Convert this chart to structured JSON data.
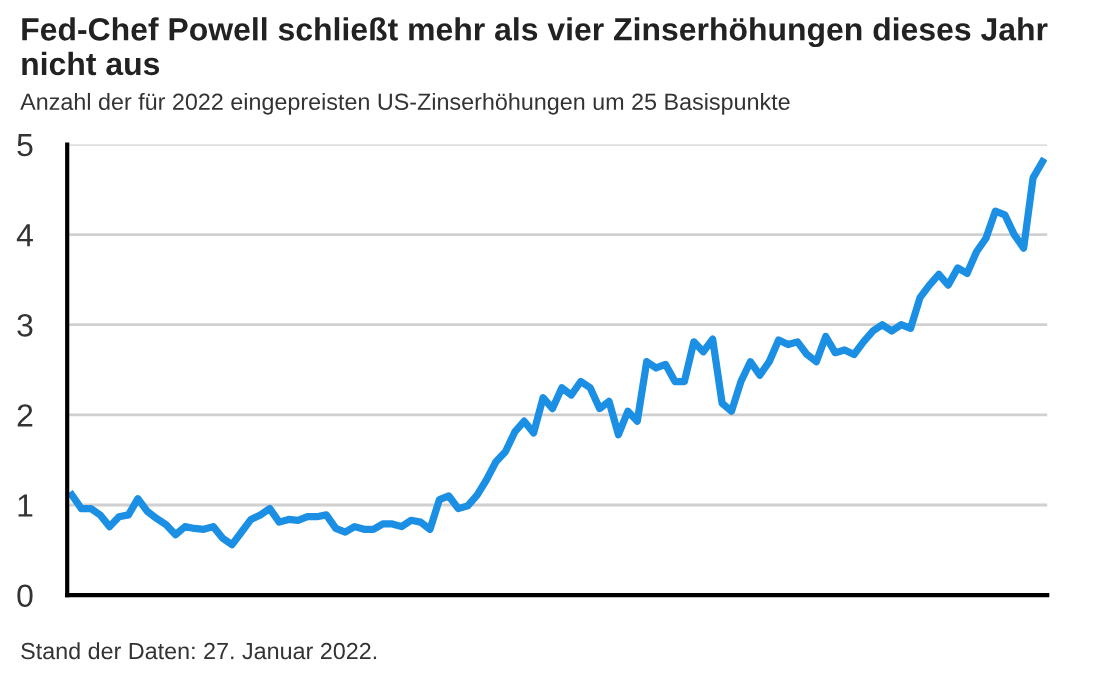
{
  "chart_data": {
    "type": "line",
    "title": "Fed-Chef Powell schließt mehr als vier Zinserhöhungen dieses Jahr nicht aus",
    "subtitle": "Anzahl der für 2022 eingepreisten US-Zinserhöhungen um 25 Basispunkte",
    "annotations": [
      "Stand der Daten: 27. Januar 2022."
    ],
    "categories": [
      null,
      null,
      null,
      null,
      null,
      null,
      null,
      null,
      null,
      null,
      null,
      null,
      null,
      null,
      null,
      null,
      null,
      null,
      null,
      null,
      null,
      null,
      null,
      null,
      null,
      null,
      null,
      null,
      null,
      null,
      null,
      null,
      null,
      null,
      null,
      null,
      null,
      null,
      null,
      null,
      null,
      null,
      null,
      null,
      null,
      null,
      null,
      null,
      null,
      null,
      null,
      null,
      null,
      null,
      null,
      null,
      null,
      null,
      null,
      null,
      null,
      null,
      null,
      null,
      null,
      null,
      null,
      null,
      null,
      null,
      null,
      null,
      null,
      null,
      null,
      null,
      null,
      null,
      null,
      null,
      null,
      null,
      null,
      null,
      null,
      null,
      null,
      null,
      null,
      null,
      null,
      null,
      null,
      null,
      null,
      null,
      null,
      null,
      null,
      null,
      null,
      null,
      null,
      null
    ],
    "series": [
      {
        "color": "#1a8fe3",
        "values": [
          1.11,
          0.96,
          0.96,
          0.89,
          0.76,
          0.87,
          0.89,
          1.07,
          0.93,
          0.85,
          0.78,
          0.67,
          0.76,
          0.74,
          0.73,
          0.76,
          0.63,
          0.56,
          0.7,
          0.84,
          0.89,
          0.96,
          0.81,
          0.84,
          0.83,
          0.87,
          0.87,
          0.89,
          0.74,
          0.7,
          0.76,
          0.73,
          0.73,
          0.79,
          0.79,
          0.76,
          0.83,
          0.81,
          0.73,
          1.06,
          1.1,
          0.96,
          0.99,
          1.11,
          1.28,
          1.48,
          1.59,
          1.81,
          1.93,
          1.8,
          2.19,
          2.07,
          2.3,
          2.22,
          2.37,
          2.3,
          2.07,
          2.15,
          1.78,
          2.04,
          1.93,
          2.59,
          2.52,
          2.56,
          2.37,
          2.37,
          2.81,
          2.7,
          2.84,
          2.13,
          2.04,
          2.37,
          2.59,
          2.44,
          2.59,
          2.83,
          2.78,
          2.81,
          2.67,
          2.59,
          2.87,
          2.69,
          2.72,
          2.67,
          2.81,
          2.93,
          3.0,
          2.93,
          3.0,
          2.96,
          3.3,
          3.44,
          3.56,
          3.44,
          3.63,
          3.57,
          3.81,
          3.96,
          4.26,
          4.22,
          4.0,
          3.85,
          4.63,
          4.81
        ]
      }
    ],
    "ylim": [
      0,
      5
    ],
    "yticks": [
      0,
      1,
      2,
      3,
      4,
      5
    ],
    "grid": "y",
    "tick_labels": "y",
    "line_style": "solid",
    "marker": "none"
  }
}
